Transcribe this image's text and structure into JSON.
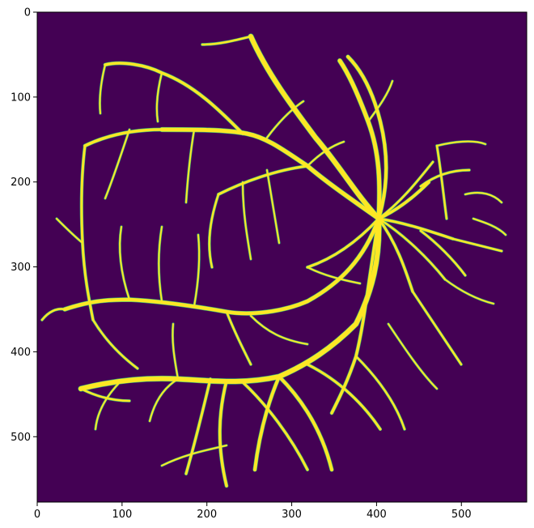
{
  "figure": {
    "colors": {
      "background": "#440154",
      "vessel": "#fde725",
      "vessel_edge": "#35b779",
      "axis": "#000000"
    }
  },
  "chart_data": {
    "type": "heatmap",
    "title": "",
    "xlabel": "",
    "ylabel": "",
    "xlim": [
      0,
      577
    ],
    "ylim": [
      577,
      0
    ],
    "x_ticks": [
      0,
      100,
      200,
      300,
      400,
      500
    ],
    "y_ticks": [
      0,
      100,
      200,
      300,
      400,
      500
    ],
    "x_tick_labels": [
      "0",
      "100",
      "200",
      "300",
      "400",
      "500"
    ],
    "y_tick_labels": [
      "0",
      "100",
      "200",
      "300",
      "400",
      "500"
    ],
    "colormap": "viridis",
    "value_range": [
      0,
      1
    ],
    "content": "binary retinal blood vessel segmentation mask"
  }
}
